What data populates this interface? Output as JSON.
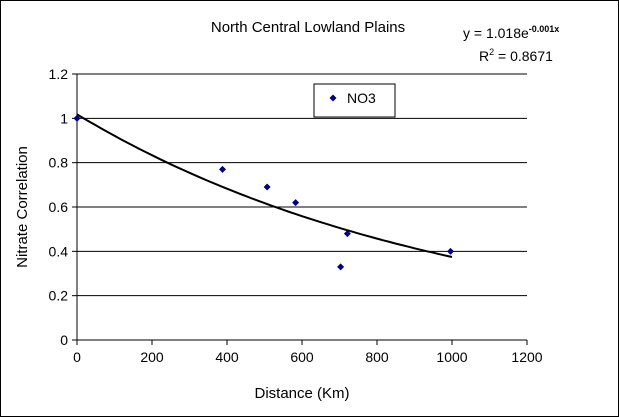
{
  "chart_data": {
    "type": "scatter",
    "title": "North Central Lowland Plains",
    "xlabel": "Distance (Km)",
    "ylabel": "Nitrate Correlation",
    "xlim": [
      0,
      1200
    ],
    "ylim": [
      0,
      1.2
    ],
    "x_ticks": [
      "0",
      "200",
      "400",
      "600",
      "800",
      "1000",
      "1200"
    ],
    "y_ticks": [
      "0",
      "0.2",
      "0.4",
      "0.6",
      "0.8",
      "1",
      "1.2"
    ],
    "grid": "horizontal",
    "legend_position": "top-center",
    "series": [
      {
        "name": "NO3",
        "color": "#000080",
        "marker": "diamond",
        "x": [
          0,
          388,
          507,
          583,
          721,
          703,
          996
        ],
        "y": [
          1.0,
          0.77,
          0.69,
          0.62,
          0.48,
          0.33,
          0.4
        ]
      }
    ],
    "trendline": {
      "type": "exponential",
      "a": 1.018,
      "b": -0.001,
      "x_range": [
        0,
        1000
      ],
      "equation_prefix": "y = 1.018e",
      "equation_exponent": "-0.001x",
      "r2_prefix": "R",
      "r2_exponent": "2",
      "r2_value": " = 0.8671"
    }
  }
}
